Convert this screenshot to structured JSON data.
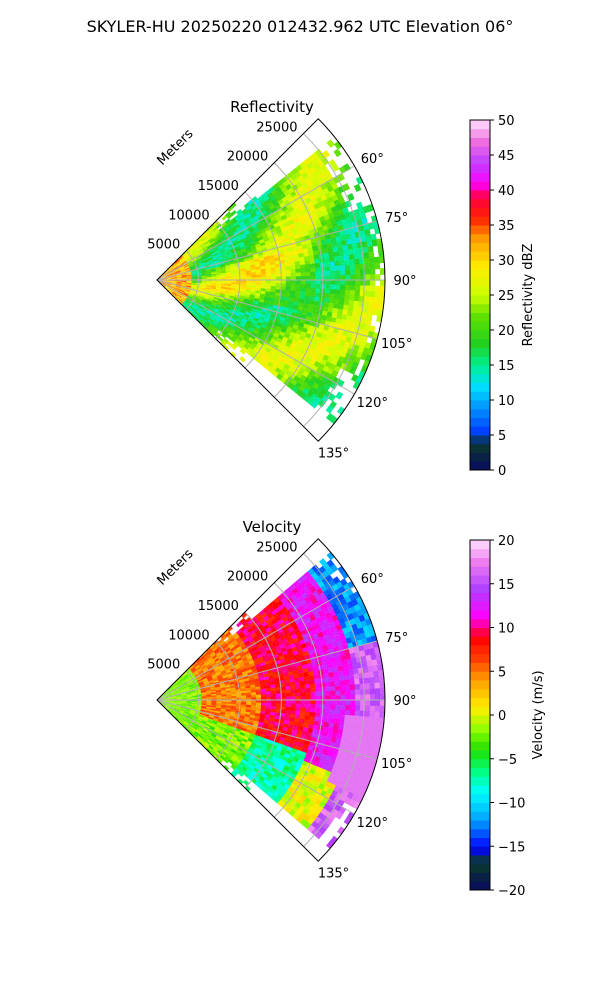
{
  "suptitle": "SKYLER-HU  20250220  012432.962 UTC Elevation 06°",
  "chart_data": [
    {
      "type": "heatmap",
      "subtype": "polar-sector (radar PPI)",
      "title": "Reflectivity",
      "range_label": "Meters",
      "azimuth_range_deg": [
        45,
        135
      ],
      "azimuth_ticks": [
        "60°",
        "75°",
        "90°",
        "105°",
        "120°",
        "135°"
      ],
      "range_max_m": 27500,
      "range_ticks": [
        "5000",
        "10000",
        "15000",
        "20000",
        "25000"
      ],
      "grid": true,
      "colorbar": {
        "label": "Reflectivity dBZ",
        "min": 0,
        "max": 50,
        "ticks": [
          "0",
          "5",
          "10",
          "15",
          "20",
          "25",
          "30",
          "35",
          "40",
          "45",
          "50"
        ]
      },
      "dominant_values_dbz": [
        20,
        35
      ],
      "typical_value_dbz": 25
    },
    {
      "type": "heatmap",
      "subtype": "polar-sector (radar PPI)",
      "title": "Velocity",
      "range_label": "Meters",
      "azimuth_range_deg": [
        45,
        135
      ],
      "azimuth_ticks": [
        "60°",
        "75°",
        "90°",
        "105°",
        "120°",
        "135°"
      ],
      "range_max_m": 27500,
      "range_ticks": [
        "5000",
        "10000",
        "15000",
        "20000",
        "25000"
      ],
      "grid": true,
      "colorbar": {
        "label": "Velocity (m/s)",
        "min": -20,
        "max": 20,
        "ticks": [
          "−20",
          "−15",
          "−10",
          "−5",
          "0",
          "5",
          "10",
          "15",
          "20"
        ]
      },
      "dominant_values_ms": [
        -10,
        17
      ]
    }
  ],
  "colors": {
    "grid": "#b0b0b0",
    "stops_refl": [
      [
        "0",
        "#0a0a60"
      ],
      [
        "0.08",
        "#0a3c28"
      ],
      [
        "0.1",
        "#0032ff"
      ],
      [
        "0.24",
        "#00e0ff"
      ],
      [
        "0.3",
        "#00f090"
      ],
      [
        "0.36",
        "#20d020"
      ],
      [
        "0.44",
        "#60e000"
      ],
      [
        "0.5",
        "#ccff00"
      ],
      [
        "0.58",
        "#ffee00"
      ],
      [
        "0.66",
        "#ffa000"
      ],
      [
        "0.72",
        "#ff2000"
      ],
      [
        "0.78",
        "#ff0040"
      ],
      [
        "0.82",
        "#ff00ff"
      ],
      [
        "0.88",
        "#c040ff"
      ],
      [
        "0.94",
        "#f070e0"
      ],
      [
        "1",
        "#ffe0ff"
      ]
    ],
    "stops_vel": [
      [
        "0",
        "#0a0a60"
      ],
      [
        "0.08",
        "#0a3c28"
      ],
      [
        "0.12",
        "#0000ff"
      ],
      [
        "0.2",
        "#00a0ff"
      ],
      [
        "0.28",
        "#00ffff"
      ],
      [
        "0.34",
        "#00ff80"
      ],
      [
        "0.4",
        "#20e000"
      ],
      [
        "0.46",
        "#90ff00"
      ],
      [
        "0.52",
        "#ffee00"
      ],
      [
        "0.6",
        "#ffa000"
      ],
      [
        "0.66",
        "#ff4000"
      ],
      [
        "0.72",
        "#ff0000"
      ],
      [
        "0.78",
        "#ff00ff"
      ],
      [
        "0.86",
        "#b040ff"
      ],
      [
        "0.94",
        "#f080f0"
      ],
      [
        "1",
        "#ffe0ff"
      ]
    ]
  }
}
